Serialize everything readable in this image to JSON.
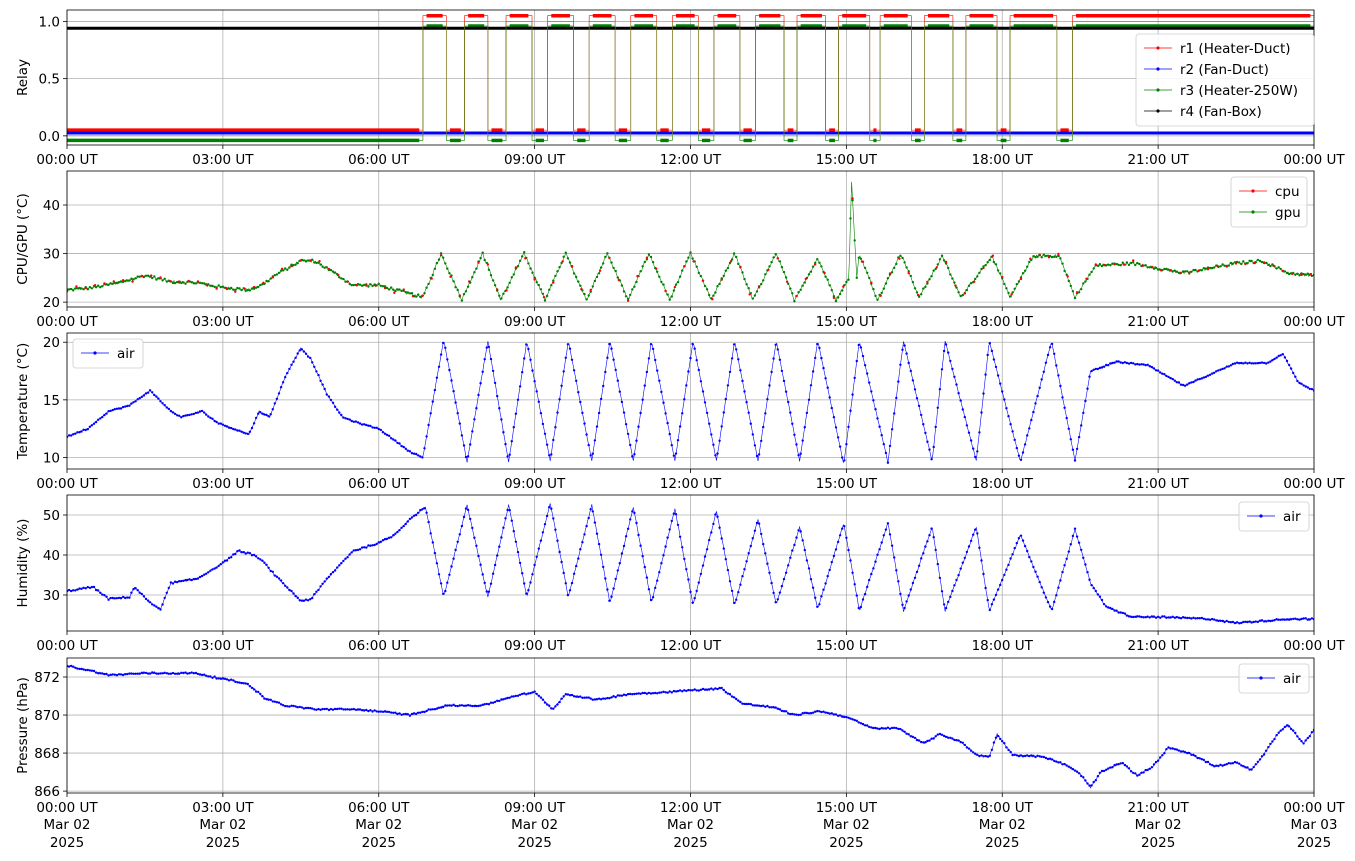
{
  "chart_data": [
    {
      "type": "line",
      "ylabel": "Relay",
      "xlim": [
        "00:00 UT",
        "24:00 UT"
      ],
      "ylim": [
        -0.08,
        1.1
      ],
      "yticks": [
        0.0,
        0.5,
        1.0
      ],
      "ytick_labels": [
        "0.0",
        "0.5",
        "1.0"
      ],
      "xtick_labels": [
        "00:00 UT",
        "03:00 UT",
        "06:00 UT",
        "09:00 UT",
        "12:00 UT",
        "15:00 UT",
        "18:00 UT",
        "21:00 UT",
        "00:00 UT"
      ],
      "grid": true,
      "legend_position": "right",
      "series": [
        {
          "name": "r1 (Heater-Duct)",
          "color": "#ff0000",
          "off_value": 0.05,
          "on_value": 1.05
        },
        {
          "name": "r2 (Fan-Duct)",
          "color": "#0000ff",
          "constant": 0.025
        },
        {
          "name": "r3 (Heater-250W)",
          "color": "#008000",
          "off_value": -0.04,
          "on_value": 0.96
        },
        {
          "name": "r4 (Fan-Box)",
          "color": "#000000",
          "constant": 0.94
        }
      ],
      "on_intervals_hours": [
        [
          6.85,
          7.3
        ],
        [
          7.65,
          8.1
        ],
        [
          8.45,
          8.95
        ],
        [
          9.25,
          9.75
        ],
        [
          10.05,
          10.55
        ],
        [
          10.85,
          11.35
        ],
        [
          11.65,
          12.15
        ],
        [
          12.45,
          12.95
        ],
        [
          13.25,
          13.8
        ],
        [
          14.05,
          14.6
        ],
        [
          14.85,
          15.45
        ],
        [
          15.65,
          16.25
        ],
        [
          16.5,
          17.05
        ],
        [
          17.3,
          17.9
        ],
        [
          18.15,
          19.05
        ],
        [
          19.35,
          24.0
        ]
      ]
    },
    {
      "type": "line",
      "ylabel": "CPU/GPU (°C)",
      "xlim": [
        "00:00 UT",
        "24:00 UT"
      ],
      "ylim": [
        19,
        47
      ],
      "yticks": [
        20,
        30,
        40
      ],
      "xtick_labels": [
        "00:00 UT",
        "03:00 UT",
        "06:00 UT",
        "09:00 UT",
        "12:00 UT",
        "15:00 UT",
        "18:00 UT",
        "21:00 UT",
        "00:00 UT"
      ],
      "grid": true,
      "legend_position": "top-right",
      "series": [
        {
          "name": "cpu",
          "color": "#ff0000"
        },
        {
          "name": "gpu",
          "color": "#008000"
        }
      ],
      "x_hours": [
        0,
        0.5,
        1.0,
        1.5,
        2.0,
        2.5,
        3.0,
        3.5,
        3.75,
        4.0,
        4.5,
        4.75,
        5.0,
        5.5,
        6.0,
        6.5,
        6.85,
        7.2,
        7.6,
        8.0,
        8.35,
        8.8,
        9.2,
        9.6,
        10.0,
        10.4,
        10.8,
        11.2,
        11.6,
        12.0,
        12.4,
        12.85,
        13.2,
        13.65,
        14.0,
        14.45,
        14.8,
        15.05,
        15.1,
        15.2,
        15.25,
        15.6,
        16.05,
        16.4,
        16.85,
        17.2,
        17.8,
        18.15,
        18.6,
        19.1,
        19.4,
        19.8,
        20.5,
        21.5,
        22.5,
        23.0,
        23.5,
        24.0
      ],
      "values_gpu": [
        22.5,
        23,
        24,
        25.5,
        24.2,
        24,
        23,
        22.5,
        23.5,
        25.5,
        28.5,
        28.5,
        27,
        23.5,
        23.5,
        22,
        21,
        30,
        20.5,
        30,
        20.5,
        30,
        20.5,
        30,
        20.5,
        30,
        20.5,
        30,
        20.5,
        30,
        20.5,
        30,
        20.5,
        30,
        20.5,
        29,
        20.5,
        25,
        45,
        25,
        30,
        20.5,
        30,
        21,
        29.5,
        21,
        29.5,
        21,
        29.5,
        29.5,
        21,
        27.5,
        28,
        26,
        28,
        28.5,
        26,
        25.5
      ]
    },
    {
      "type": "line",
      "ylabel": "Temperature (°C)",
      "xlim": [
        "00:00 UT",
        "24:00 UT"
      ],
      "ylim": [
        9,
        20.8
      ],
      "yticks": [
        10,
        15,
        20
      ],
      "xtick_labels": [
        "00:00 UT",
        "03:00 UT",
        "06:00 UT",
        "09:00 UT",
        "12:00 UT",
        "15:00 UT",
        "18:00 UT",
        "21:00 UT",
        "00:00 UT"
      ],
      "grid": true,
      "legend_position": "top-left",
      "series": [
        {
          "name": "air",
          "color": "#0000ff"
        }
      ],
      "x_hours": [
        0,
        0.4,
        0.8,
        1.2,
        1.6,
        2.0,
        2.2,
        2.6,
        2.9,
        3.2,
        3.5,
        3.7,
        3.9,
        4.2,
        4.5,
        4.7,
        5.0,
        5.3,
        5.6,
        6.0,
        6.3,
        6.6,
        6.85,
        7.25,
        7.7,
        8.1,
        8.5,
        8.85,
        9.3,
        9.65,
        10.1,
        10.45,
        10.9,
        11.25,
        11.7,
        12.05,
        12.5,
        12.85,
        13.3,
        13.65,
        14.1,
        14.45,
        14.95,
        15.25,
        15.8,
        16.1,
        16.65,
        16.9,
        17.5,
        17.75,
        18.35,
        18.95,
        19.4,
        19.7,
        20.2,
        20.8,
        21.5,
        21.9,
        22.5,
        23.1,
        23.4,
        23.7,
        24.0
      ],
      "values": [
        11.8,
        12.5,
        14,
        14.5,
        15.8,
        14,
        13.5,
        14,
        13,
        12.5,
        12,
        14,
        13.5,
        17,
        19.5,
        18.5,
        15.5,
        13.5,
        13,
        12.5,
        11.5,
        10.5,
        10,
        20.2,
        9.6,
        20.1,
        9.6,
        20.1,
        9.7,
        20.1,
        9.7,
        20.1,
        9.7,
        20.1,
        9.7,
        20.1,
        9.7,
        20.1,
        9.7,
        20.1,
        9.7,
        20.1,
        9.4,
        20.1,
        9.6,
        20.1,
        9.7,
        20.1,
        9.7,
        20.1,
        9.6,
        20.1,
        9.7,
        17.5,
        18.3,
        18.0,
        16.2,
        17.0,
        18.2,
        18.2,
        19.0,
        16.5,
        15.8
      ]
    },
    {
      "type": "line",
      "ylabel": "Humidity (%)",
      "xlim": [
        "00:00 UT",
        "24:00 UT"
      ],
      "ylim": [
        21,
        55
      ],
      "yticks": [
        30,
        40,
        50
      ],
      "xtick_labels": [
        "00:00 UT",
        "03:00 UT",
        "06:00 UT",
        "09:00 UT",
        "12:00 UT",
        "15:00 UT",
        "18:00 UT",
        "21:00 UT",
        "00:00 UT"
      ],
      "grid": true,
      "legend_position": "top-right",
      "series": [
        {
          "name": "air",
          "color": "#0000ff"
        }
      ],
      "x_hours": [
        0,
        0.5,
        0.8,
        1.2,
        1.3,
        1.6,
        1.8,
        2.0,
        2.5,
        3.0,
        3.3,
        3.6,
        3.8,
        4.0,
        4.5,
        4.7,
        5.0,
        5.5,
        6.0,
        6.3,
        6.6,
        6.9,
        7.25,
        7.7,
        8.1,
        8.5,
        8.85,
        9.3,
        9.65,
        10.1,
        10.45,
        10.9,
        11.25,
        11.7,
        12.05,
        12.5,
        12.85,
        13.3,
        13.65,
        14.1,
        14.45,
        14.95,
        15.25,
        15.8,
        16.1,
        16.65,
        16.9,
        17.5,
        17.75,
        18.35,
        18.95,
        19.4,
        19.7,
        20.0,
        20.5,
        21.0,
        22.0,
        22.5,
        23.0,
        23.5,
        24.0
      ],
      "values": [
        31,
        32,
        29,
        29.5,
        32,
        28,
        26.5,
        33,
        34,
        38,
        41,
        40,
        38,
        35,
        28.5,
        29,
        34,
        41,
        43,
        45,
        49,
        52,
        29.5,
        52.5,
        29.5,
        52.5,
        29.5,
        53,
        29.5,
        52.5,
        28,
        52,
        28,
        51.5,
        27.5,
        51,
        27.5,
        49,
        27.5,
        47,
        26.5,
        48,
        26,
        48,
        26,
        47,
        26,
        47,
        26,
        45,
        26,
        46.5,
        33,
        27,
        24.5,
        24.5,
        24,
        23,
        23.5,
        24,
        24
      ]
    },
    {
      "type": "line",
      "ylabel": "Pressure (hPa)",
      "xlim": [
        "00:00 UT",
        "24:00 UT"
      ],
      "ylim": [
        865.9,
        873.0
      ],
      "yticks": [
        866,
        868,
        870,
        872
      ],
      "xtick_labels": [
        "00:00 UT",
        "03:00 UT",
        "06:00 UT",
        "09:00 UT",
        "12:00 UT",
        "15:00 UT",
        "18:00 UT",
        "21:00 UT",
        "00:00 UT"
      ],
      "xtick_date_labels": [
        "Mar 02",
        "Mar 02",
        "Mar 02",
        "Mar 02",
        "Mar 02",
        "Mar 02",
        "Mar 02",
        "Mar 02",
        "Mar 03"
      ],
      "xtick_year_labels": [
        "2025",
        "2025",
        "2025",
        "2025",
        "2025",
        "2025",
        "2025",
        "2025",
        "2025"
      ],
      "grid": true,
      "legend_position": "top-right",
      "series": [
        {
          "name": "air",
          "color": "#0000ff"
        }
      ],
      "x_hours": [
        0,
        0.5,
        0.8,
        1.5,
        2.5,
        2.8,
        3.2,
        3.5,
        3.8,
        4.2,
        4.8,
        5.5,
        6.0,
        6.6,
        7.3,
        8.0,
        8.6,
        9.0,
        9.35,
        9.6,
        10.2,
        10.8,
        11.5,
        12.0,
        12.6,
        13.0,
        13.6,
        14.0,
        14.5,
        15.0,
        15.5,
        16.0,
        16.5,
        16.8,
        17.2,
        17.5,
        17.75,
        17.9,
        18.2,
        18.8,
        19.2,
        19.5,
        19.7,
        19.9,
        20.3,
        20.6,
        20.9,
        21.2,
        21.6,
        22.1,
        22.5,
        22.8,
        23.0,
        23.3,
        23.5,
        23.8,
        24.0
      ],
      "values": [
        872.6,
        872.3,
        872.1,
        872.2,
        872.2,
        872.0,
        871.8,
        871.6,
        870.9,
        870.5,
        870.3,
        870.3,
        870.2,
        870.0,
        870.5,
        870.5,
        871.0,
        871.2,
        870.3,
        871.1,
        870.8,
        871.1,
        871.2,
        871.3,
        871.4,
        870.6,
        870.4,
        870.0,
        870.2,
        869.9,
        869.3,
        869.3,
        868.5,
        869.0,
        868.6,
        867.9,
        867.8,
        869.0,
        867.9,
        867.8,
        867.4,
        866.9,
        866.2,
        867.0,
        867.5,
        866.8,
        867.3,
        868.3,
        868.0,
        867.3,
        867.5,
        867.1,
        867.8,
        869.0,
        869.5,
        868.5,
        869.2
      ]
    }
  ]
}
